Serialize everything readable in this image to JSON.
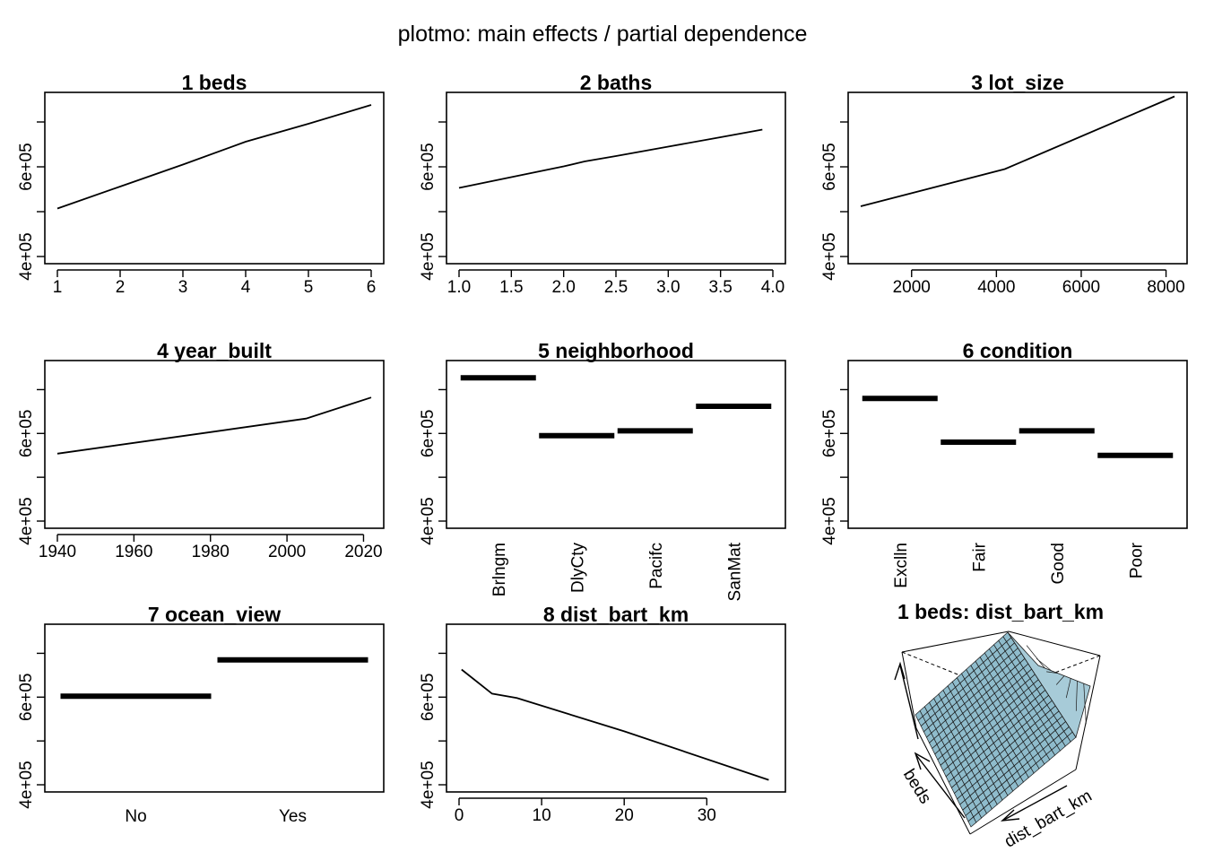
{
  "figure": {
    "title": "plotmo: main effects / partial dependence"
  },
  "chart_data": [
    {
      "type": "line",
      "title": "1  beds",
      "x": [
        1,
        2,
        3,
        4,
        5,
        6
      ],
      "y": [
        507000,
        556000,
        605000,
        656000,
        696000,
        738000
      ],
      "xlim": [
        1,
        6
      ],
      "xticks": [
        "1",
        "2",
        "3",
        "4",
        "5",
        "6"
      ],
      "ylim": [
        400000,
        750000
      ],
      "yticks": [
        "4e+05",
        "6e+05"
      ]
    },
    {
      "type": "line",
      "title": "2  baths",
      "x": [
        1.0,
        1.5,
        2.0,
        2.2,
        2.5,
        3.0,
        3.5,
        3.9
      ],
      "y": [
        553000,
        577000,
        601000,
        612000,
        624000,
        645000,
        666000,
        683000
      ],
      "xlim": [
        1.0,
        4.0
      ],
      "xticks": [
        "1.0",
        "1.5",
        "2.0",
        "2.5",
        "3.0",
        "3.5",
        "4.0"
      ],
      "ylim": [
        400000,
        750000
      ],
      "yticks": [
        "4e+05",
        "6e+05"
      ]
    },
    {
      "type": "line",
      "title": "3  lot_size",
      "x": [
        800,
        4200,
        8200
      ],
      "y": [
        512000,
        595000,
        757000
      ],
      "xlim": [
        800,
        8200
      ],
      "xticks": [
        "2000",
        "4000",
        "6000",
        "8000"
      ],
      "ylim": [
        400000,
        750000
      ],
      "yticks": [
        "4e+05",
        "6e+05"
      ]
    },
    {
      "type": "line",
      "title": "4  year_built",
      "x": [
        1940,
        1980,
        2005,
        2022
      ],
      "y": [
        554000,
        603000,
        634000,
        682000
      ],
      "xlim": [
        1940,
        2022
      ],
      "xticks": [
        "1940",
        "1960",
        "1980",
        "2000",
        "2020"
      ],
      "ylim": [
        400000,
        750000
      ],
      "yticks": [
        "4e+05",
        "6e+05"
      ]
    },
    {
      "type": "bar",
      "title": "5  neighborhood",
      "categories": [
        "Brlngm",
        "DlyCty",
        "Pacifc",
        "SanMat"
      ],
      "values": [
        727000,
        595000,
        606000,
        662000
      ],
      "ylim": [
        400000,
        750000
      ],
      "yticks": [
        "4e+05",
        "6e+05"
      ]
    },
    {
      "type": "bar",
      "title": "6  condition",
      "categories": [
        "Exclln",
        "Fair",
        "Good",
        "Poor"
      ],
      "values": [
        680000,
        580000,
        606000,
        550000
      ],
      "ylim": [
        400000,
        750000
      ],
      "yticks": [
        "4e+05",
        "6e+05"
      ]
    },
    {
      "type": "bar",
      "title": "7  ocean_view",
      "categories": [
        "No",
        "Yes"
      ],
      "values": [
        602000,
        685000
      ],
      "ylim": [
        400000,
        750000
      ],
      "yticks": [
        "4e+05",
        "6e+05"
      ]
    },
    {
      "type": "line",
      "title": "8  dist_bart_km",
      "x": [
        0.3,
        4,
        7,
        20,
        37.5
      ],
      "y": [
        663000,
        608000,
        598000,
        522000,
        411000
      ],
      "xlim": [
        0,
        38
      ],
      "xticks": [
        "0",
        "10",
        "20",
        "30"
      ],
      "ylim": [
        400000,
        750000
      ],
      "yticks": [
        "4e+05",
        "6e+05"
      ]
    },
    {
      "type": "surface",
      "title": "1 beds: dist_bart_km",
      "xlabel": "dist_bart_km",
      "ylabel": "beds",
      "color": "#8fbccc",
      "grid": [
        20,
        20
      ]
    }
  ]
}
